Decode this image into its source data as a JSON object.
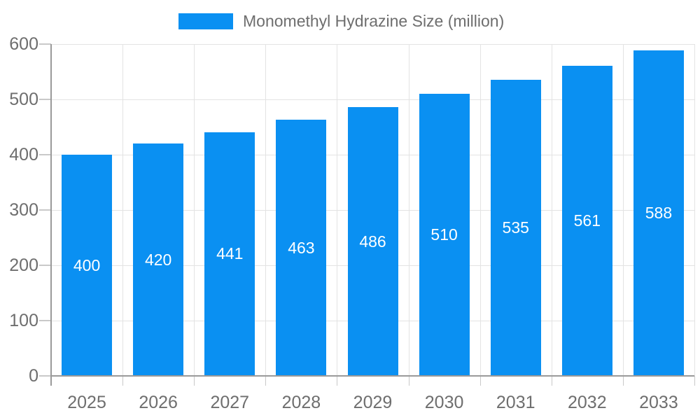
{
  "legend": {
    "label": "Monomethyl Hydrazine Size (million)"
  },
  "colors": {
    "bar": "#0a90f2",
    "axis": "#9a9a9a",
    "gridline": "#e3e3e3",
    "tick": "#c9c9c9",
    "text": "#6e6e6e",
    "bar_label": "#ffffff"
  },
  "chart_data": {
    "type": "bar",
    "categories": [
      "2025",
      "2026",
      "2027",
      "2028",
      "2029",
      "2030",
      "2031",
      "2032",
      "2033"
    ],
    "values": [
      400,
      420,
      441,
      463,
      486,
      510,
      535,
      561,
      588
    ],
    "title": "Monomethyl Hydrazine Size (million)",
    "xlabel": "",
    "ylabel": "",
    "ylim": [
      0,
      600
    ],
    "ytick_step": 100,
    "grid": true,
    "legend_position": "top",
    "bar_labels_shown": true,
    "bar_label_position": "center"
  }
}
